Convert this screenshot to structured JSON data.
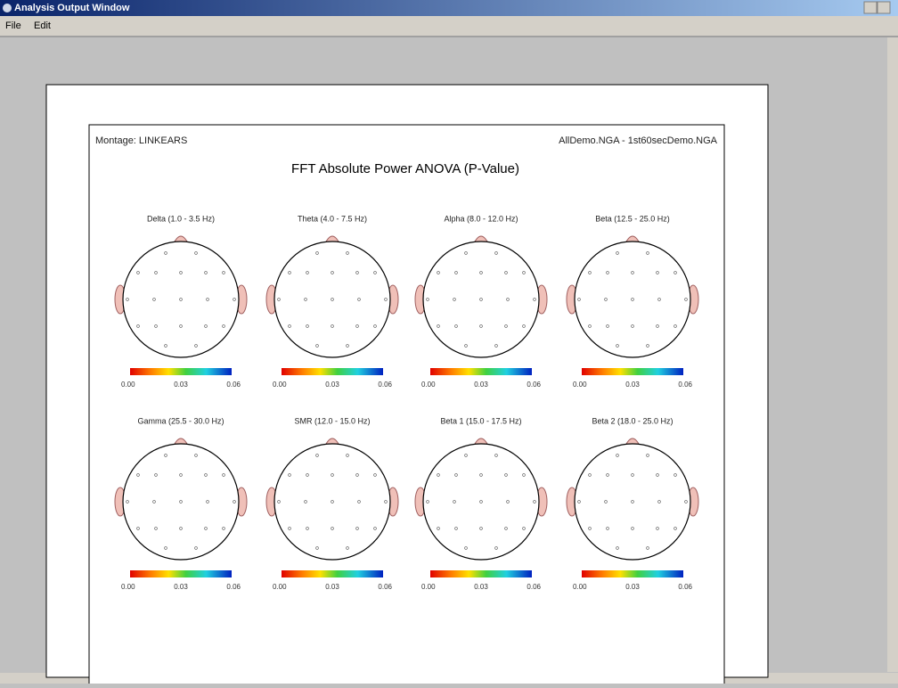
{
  "window": {
    "title": "Analysis Output Window",
    "menu": [
      "File",
      "Edit"
    ]
  },
  "report": {
    "montage": "Montage:  LINKEARS",
    "files": "AllDemo.NGA - 1st60secDemo.NGA",
    "title": "FFT Absolute Power ANOVA  (P-Value)",
    "maps": [
      {
        "label": "Delta (1.0 - 3.5 Hz)",
        "scale_labels": [
          "0.00",
          "0.03",
          "0.06"
        ]
      },
      {
        "label": "Theta (4.0 - 7.5 Hz)",
        "scale_labels": [
          "0.00",
          "0.03",
          "0.06"
        ]
      },
      {
        "label": "Alpha (8.0 - 12.0 Hz)",
        "scale_labels": [
          "0.00",
          "0.03",
          "0.06"
        ]
      },
      {
        "label": "Beta (12.5 - 25.0 Hz)",
        "scale_labels": [
          "0.00",
          "0.03",
          "0.06"
        ]
      },
      {
        "label": "Gamma (25.5 - 30.0 Hz)",
        "scale_labels": [
          "0.00",
          "0.03",
          "0.06"
        ]
      },
      {
        "label": "SMR (12.0 - 15.0 Hz)",
        "scale_labels": [
          "0.00",
          "0.03",
          "0.06"
        ]
      },
      {
        "label": "Beta 1 (15.0 - 17.5 Hz)",
        "scale_labels": [
          "0.00",
          "0.03",
          "0.06"
        ]
      },
      {
        "label": "Beta 2 (18.0 - 25.0 Hz)",
        "scale_labels": [
          "0.00",
          "0.03",
          "0.06"
        ]
      }
    ]
  }
}
